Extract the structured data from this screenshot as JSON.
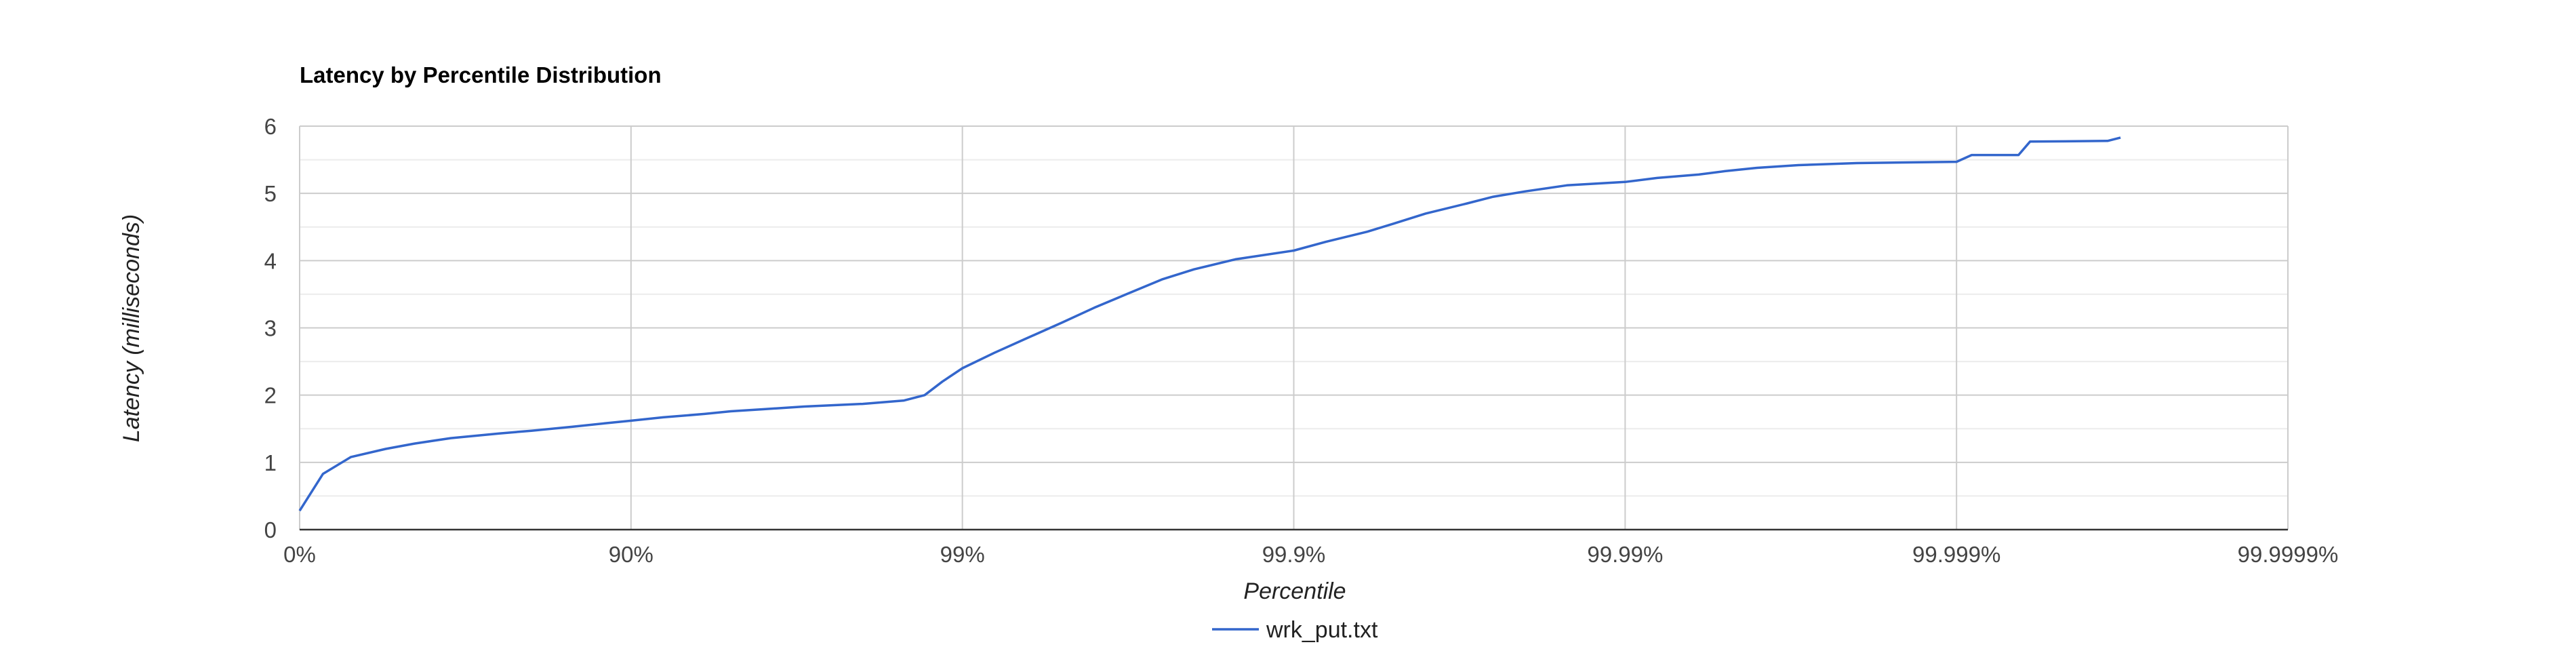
{
  "chart_data": {
    "type": "line",
    "title": "Latency by Percentile Distribution",
    "xlabel": "Percentile",
    "ylabel": "Latency (milliseconds)",
    "x_scale": "log_inverse_percentile",
    "x_ticks": [
      {
        "value": 0,
        "label": "0%"
      },
      {
        "value": 90,
        "label": "90%"
      },
      {
        "value": 99,
        "label": "99%"
      },
      {
        "value": 99.9,
        "label": "99.9%"
      },
      {
        "value": 99.99,
        "label": "99.99%"
      },
      {
        "value": 99.999,
        "label": "99.999%"
      },
      {
        "value": 99.9999,
        "label": "99.9999%"
      }
    ],
    "ylim": [
      0,
      6
    ],
    "y_ticks": [
      0,
      1,
      2,
      3,
      4,
      5,
      6
    ],
    "grid": true,
    "legend_position": "bottom",
    "series": [
      {
        "name": "wrk_put.txt",
        "color": "#3366cc",
        "points": [
          [
            0,
            0.28
          ],
          [
            15,
            0.83
          ],
          [
            30,
            1.08
          ],
          [
            45,
            1.2
          ],
          [
            55,
            1.28
          ],
          [
            65,
            1.36
          ],
          [
            75,
            1.43
          ],
          [
            80,
            1.47
          ],
          [
            85,
            1.53
          ],
          [
            88,
            1.58
          ],
          [
            90,
            1.62
          ],
          [
            92,
            1.67
          ],
          [
            94,
            1.72
          ],
          [
            95,
            1.76
          ],
          [
            96,
            1.79
          ],
          [
            97,
            1.83
          ],
          [
            98,
            1.87
          ],
          [
            98.5,
            1.92
          ],
          [
            98.7,
            2.0
          ],
          [
            98.85,
            2.2
          ],
          [
            99,
            2.4
          ],
          [
            99.2,
            2.63
          ],
          [
            99.35,
            2.83
          ],
          [
            99.5,
            3.08
          ],
          [
            99.6,
            3.3
          ],
          [
            99.68,
            3.5
          ],
          [
            99.75,
            3.72
          ],
          [
            99.8,
            3.87
          ],
          [
            99.85,
            4.02
          ],
          [
            99.9,
            4.15
          ],
          [
            99.92,
            4.28
          ],
          [
            99.94,
            4.43
          ],
          [
            99.95,
            4.55
          ],
          [
            99.96,
            4.7
          ],
          [
            99.97,
            4.85
          ],
          [
            99.975,
            4.95
          ],
          [
            99.98,
            5.03
          ],
          [
            99.985,
            5.12
          ],
          [
            99.99,
            5.17
          ],
          [
            99.992,
            5.23
          ],
          [
            99.994,
            5.28
          ],
          [
            99.995,
            5.33
          ],
          [
            99.996,
            5.38
          ],
          [
            99.997,
            5.42
          ],
          [
            99.998,
            5.45
          ],
          [
            99.999,
            5.47
          ],
          [
            99.9991,
            5.57
          ],
          [
            99.99935,
            5.57
          ],
          [
            99.9994,
            5.77
          ],
          [
            99.99965,
            5.78
          ],
          [
            99.99968,
            5.83
          ]
        ]
      }
    ]
  }
}
